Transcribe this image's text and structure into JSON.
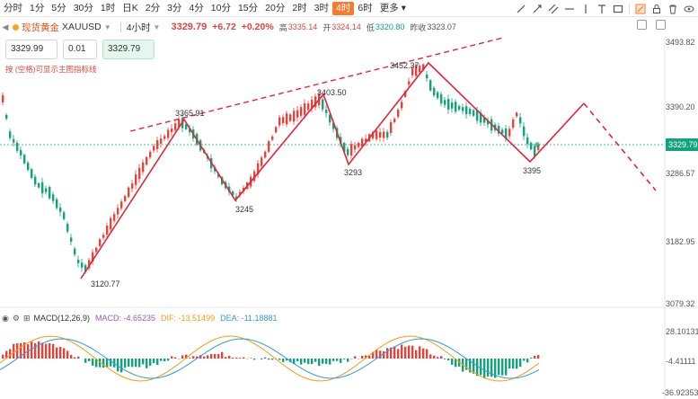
{
  "toolbar": {
    "timeframes": [
      "分时",
      "1分",
      "5分",
      "30分",
      "1时",
      "日K",
      "2分",
      "3分",
      "4分",
      "10分",
      "15分",
      "20分",
      "2时",
      "3时",
      "4时",
      "6时",
      "更多"
    ],
    "active_timeframe": "4时"
  },
  "quote": {
    "symbol_name": "现货黄金",
    "symbol_code": "XAUUSD",
    "period": "4小时",
    "price": "3329.79",
    "change": "+6.72",
    "change_pct": "+0.20%",
    "high_label": "高",
    "high": "3335.14",
    "open_label": "开",
    "open": "3324.14",
    "low_label": "低",
    "low": "3320.80",
    "prev_label": "昨收",
    "prev": "3323.07"
  },
  "trade": {
    "sell_price": "3329.99",
    "lot": "0.01",
    "buy_price": "3329.79"
  },
  "hint": "按 (空格)可显示主图指标线",
  "price_axis": [
    "3493.82",
    "3390.20",
    "3286.57",
    "3182.95",
    "3079.32"
  ],
  "current_price_tag": "3329.79",
  "annotations": [
    "3365.91",
    "3245",
    "3403.50",
    "3293",
    "3452.37",
    "3395",
    "3120.77"
  ],
  "macd": {
    "title": "MACD(12,26,9)",
    "macd_label": "MACD: -4.65235",
    "dif_label": "DIF: -13.51499",
    "dea_label": "DEA: -11.18881",
    "axis": [
      "28.10131",
      "-4.41111",
      "-36.92353"
    ],
    "colors": {
      "macd": "#9b59b6",
      "dif": "#f39c12",
      "dea": "#3498db",
      "up": "#e0463b",
      "down": "#12a37a"
    }
  },
  "colors": {
    "accent": "#f57c2e",
    "up": "#e0463b",
    "down": "#12a37a",
    "trend": "#e0263b"
  }
}
